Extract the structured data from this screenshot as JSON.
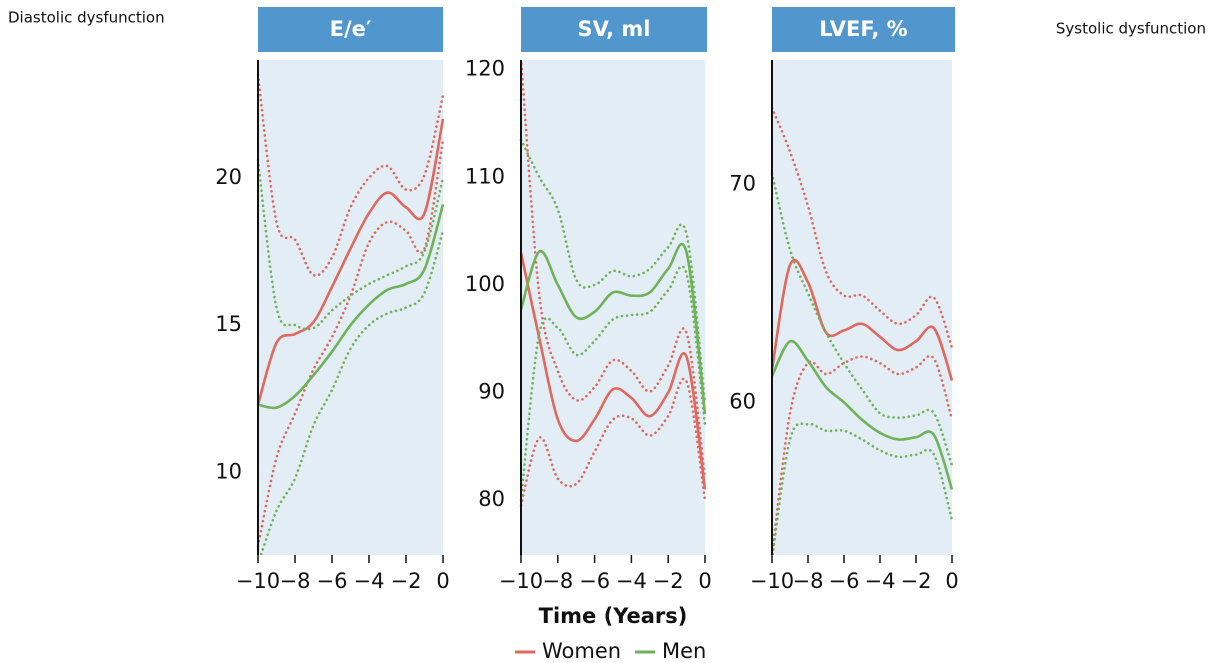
{
  "annotations": [
    "Diastolic dysfunction",
    "Systolic dysfunction"
  ],
  "x_label": "Time (Years)",
  "chart_data": [
    {
      "type": "line",
      "title": "E/e′",
      "x": [
        -10,
        -9,
        -8,
        -7,
        -6,
        -5,
        -4,
        -3,
        -2,
        -1,
        0
      ],
      "xlim": [
        -10,
        0
      ],
      "xticks": [
        {
          "value": -10,
          "label": "−10"
        },
        {
          "value": -8,
          "label": "−8"
        },
        {
          "value": -6,
          "label": "−6"
        },
        {
          "value": -4,
          "label": "−4"
        },
        {
          "value": -2,
          "label": "−2"
        },
        0
      ],
      "ylim": [
        7.2,
        24
      ],
      "yticks": [
        10,
        15,
        20
      ],
      "series": [
        {
          "name": "Women",
          "color": "#e0685d",
          "values": [
            12.3,
            14.4,
            14.7,
            15.1,
            16.3,
            17.6,
            18.8,
            19.5,
            19.0,
            18.8,
            22.0
          ],
          "upper": [
            23.5,
            18.5,
            17.9,
            16.7,
            17.3,
            19.0,
            20.0,
            20.4,
            19.6,
            20.1,
            22.8
          ],
          "lower": [
            7.5,
            10.5,
            12.0,
            13.5,
            14.6,
            16.0,
            17.8,
            18.5,
            18.2,
            17.6,
            21.3
          ]
        },
        {
          "name": "Men",
          "color": "#6fb257",
          "values": [
            12.3,
            12.2,
            12.6,
            13.3,
            14.1,
            15.0,
            15.7,
            16.2,
            16.4,
            16.9,
            19.1
          ],
          "upper": [
            20.6,
            15.6,
            15.0,
            14.9,
            15.5,
            16.0,
            16.4,
            16.7,
            17.0,
            17.5,
            20.0
          ],
          "lower": [
            6.9,
            8.7,
            9.8,
            11.6,
            12.8,
            14.2,
            15.0,
            15.4,
            15.6,
            16.1,
            18.2
          ]
        }
      ]
    },
    {
      "type": "line",
      "title": "SV, ml",
      "x": [
        -10,
        -9,
        -8,
        -7,
        -6,
        -5,
        -4,
        -3,
        -2,
        -1,
        0
      ],
      "xlim": [
        -10,
        0
      ],
      "xticks": [
        {
          "value": -10,
          "label": "−10"
        },
        {
          "value": -8,
          "label": "−8"
        },
        {
          "value": -6,
          "label": "−6"
        },
        {
          "value": -4,
          "label": "−4"
        },
        {
          "value": -2,
          "label": "−2"
        },
        0
      ],
      "ylim": [
        74.9,
        120.9
      ],
      "yticks": [
        80,
        90,
        100,
        110,
        120
      ],
      "series": [
        {
          "name": "Women",
          "color": "#e0685d",
          "values": [
            103,
            95,
            87.5,
            85.5,
            87.5,
            90.3,
            89.5,
            87.8,
            90,
            93.3,
            81
          ],
          "upper": [
            121,
            99,
            92,
            89.3,
            90.5,
            93,
            92,
            90.1,
            92.5,
            95.5,
            82
          ],
          "lower": [
            79.5,
            85.8,
            82,
            81.5,
            84.5,
            87.5,
            87.6,
            86,
            87.8,
            91,
            80
          ]
        },
        {
          "name": "Men",
          "color": "#6fb257",
          "values": [
            97.7,
            103.1,
            100,
            97,
            97.5,
            99.3,
            99,
            99.3,
            101.5,
            103,
            88
          ],
          "upper": [
            113.5,
            110,
            107,
            100.5,
            100,
            101.3,
            100.8,
            101.5,
            103.5,
            104.7,
            89
          ],
          "lower": [
            80,
            95.5,
            96,
            93.5,
            94.8,
            96.8,
            97.2,
            97.5,
            99.5,
            101,
            87
          ]
        }
      ]
    },
    {
      "type": "line",
      "title": "LVEF, %",
      "x": [
        -10,
        -9,
        -8,
        -7,
        -6,
        -5,
        -4,
        -3,
        -2,
        -1,
        0
      ],
      "xlim": [
        -10,
        0
      ],
      "xticks": [
        {
          "value": -10,
          "label": "−10"
        },
        {
          "value": -8,
          "label": "−8"
        },
        {
          "value": -6,
          "label": "−6"
        },
        {
          "value": -4,
          "label": "−4"
        },
        {
          "value": -2,
          "label": "−2"
        },
        0
      ],
      "ylim": [
        53.0,
        75.7
      ],
      "yticks": [
        60,
        70
      ],
      "series": [
        {
          "name": "Women",
          "color": "#e0685d",
          "values": [
            61.5,
            66.3,
            65.5,
            63.2,
            63.3,
            63.6,
            63.0,
            62.4,
            62.8,
            63.4,
            61.0
          ],
          "upper": [
            73.5,
            71.5,
            69,
            66,
            64.9,
            64.9,
            64.2,
            63.6,
            64,
            64.8,
            62.5
          ],
          "lower": [
            53,
            59.5,
            61.8,
            61.3,
            61.8,
            62.1,
            61.8,
            61.3,
            61.6,
            62.0,
            59.2
          ]
        },
        {
          "name": "Men",
          "color": "#6fb257",
          "values": [
            61.2,
            62.8,
            61.9,
            60.7,
            60.0,
            59.2,
            58.6,
            58.3,
            58.4,
            58.5,
            56.0
          ],
          "upper": [
            70.5,
            67,
            65,
            63.2,
            61.8,
            60.6,
            59.5,
            59.3,
            59.4,
            59.5,
            57.1
          ],
          "lower": [
            52.8,
            58.3,
            59.0,
            58.7,
            58.7,
            58.3,
            57.8,
            57.5,
            57.6,
            57.6,
            54.6
          ]
        }
      ]
    }
  ]
}
